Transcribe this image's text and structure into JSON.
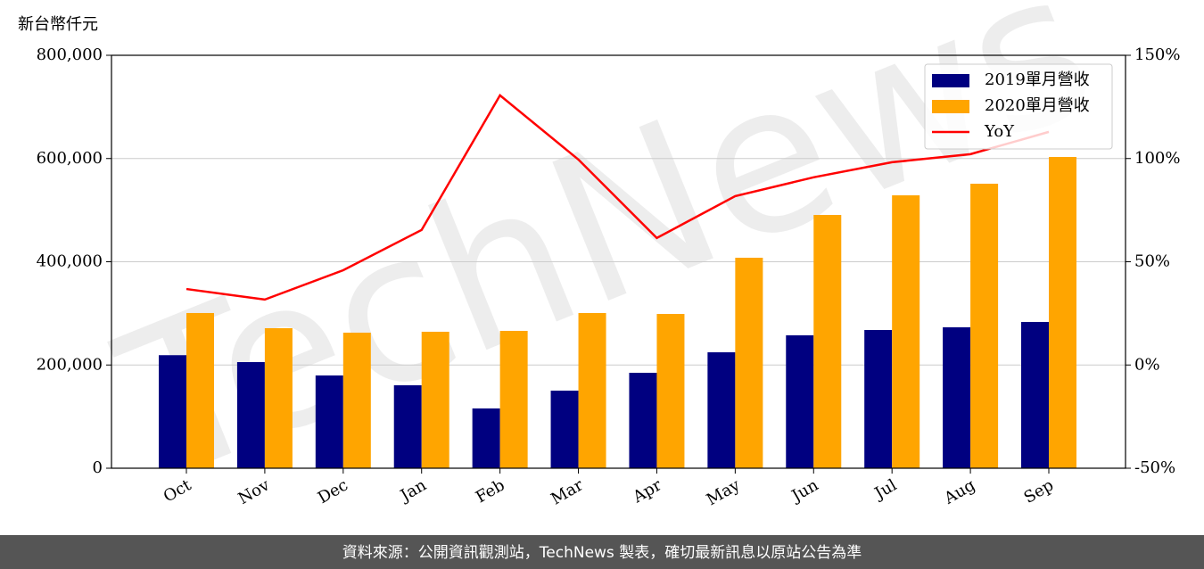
{
  "chart_data": {
    "type": "bar",
    "y_label": "新台幣仟元",
    "watermark": "TechNews",
    "footer": "資料來源：公開資訊觀測站，TechNews 製表，確切最新訊息以原站公告為準",
    "categories": [
      "Oct",
      "Nov",
      "Dec",
      "Jan",
      "Feb",
      "Mar",
      "Apr",
      "May",
      "Jun",
      "Jul",
      "Aug",
      "Sep"
    ],
    "series": [
      {
        "name": "2019單月營收",
        "color": "#000080",
        "values": [
          219000,
          205600,
          179700,
          160700,
          115800,
          150300,
          184900,
          224600,
          257500,
          267800,
          273000,
          283400
        ]
      },
      {
        "name": "2020單月營收",
        "color": "#ffa500",
        "values": [
          300700,
          271300,
          262600,
          264400,
          266100,
          300700,
          298900,
          407800,
          490700,
          528700,
          551200,
          603000
        ]
      },
      {
        "name": "YoY",
        "color": "#ff0000",
        "type": "line",
        "axis": "y2",
        "values": [
          36.8,
          31.7,
          45.9,
          65.4,
          130.6,
          99.5,
          61.5,
          81.8,
          90.9,
          98.2,
          102.1,
          112.9
        ]
      }
    ],
    "ylim": [
      0,
      800000
    ],
    "yticks": [
      0,
      {
        "value": 200000,
        "label": "200,000"
      },
      {
        "value": 400000,
        "label": "400,000"
      },
      {
        "value": 600000,
        "label": "600,000"
      },
      {
        "value": 800000,
        "label": "800,000"
      }
    ],
    "y2lim": [
      -50,
      150
    ],
    "y2ticks": [
      {
        "value": -50,
        "label": "-50%"
      },
      {
        "value": 0,
        "label": "0%"
      },
      {
        "value": 50,
        "label": "50%"
      },
      {
        "value": 100,
        "label": "100%"
      },
      {
        "value": 150,
        "label": "150%"
      }
    ],
    "grid": true,
    "legend": "upper right"
  }
}
